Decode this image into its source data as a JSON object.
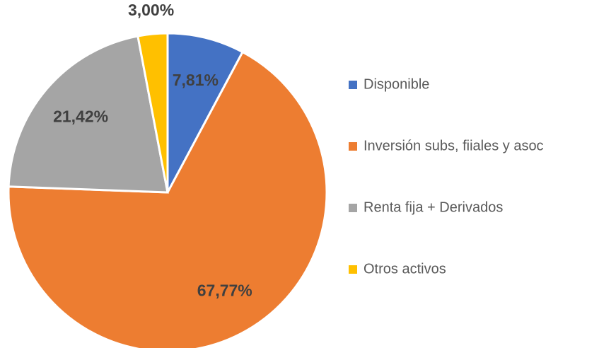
{
  "chart_data": {
    "type": "pie",
    "categories": [
      "Disponible",
      "Inversión subs, fiiales y asoc",
      "Renta fija + Derivados",
      "Otros activos"
    ],
    "values": [
      7.81,
      67.77,
      21.42,
      3.0
    ],
    "value_labels": [
      "7,81%",
      "67,77%",
      "21,42%",
      "3,00%"
    ],
    "colors": [
      "#4472c4",
      "#ed7d31",
      "#a5a5a5",
      "#ffc000"
    ],
    "legend": "right"
  }
}
